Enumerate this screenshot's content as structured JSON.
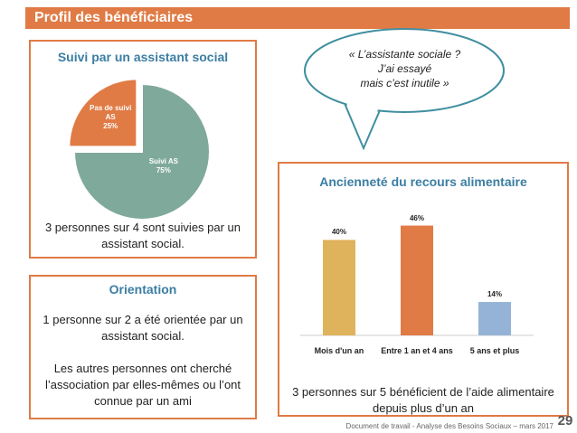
{
  "header": {
    "title": "Profil des bénéficiaires"
  },
  "chart_data": [
    {
      "type": "pie",
      "title": "Suivi par un assistant social",
      "categories": [
        "Suivi AS",
        "Pas de suivi AS"
      ],
      "values": [
        75,
        25
      ],
      "value_labels": [
        "75%",
        "25%"
      ],
      "colors": [
        "#7fa99b",
        "#e07b45"
      ]
    },
    {
      "type": "bar",
      "title": "Ancienneté du recours alimentaire",
      "categories": [
        "Mois d'un an",
        "Entre 1 an et 4 ans",
        "5 ans et plus"
      ],
      "values": [
        40,
        46,
        14
      ],
      "value_labels": [
        "40%",
        "46%",
        "14%"
      ],
      "colors": [
        "#dfb25c",
        "#e07b45",
        "#95b3d7"
      ],
      "ylim": [
        0,
        50
      ]
    }
  ],
  "panels": {
    "suivi_text": "3 personnes sur 4 sont suivies par un assistant social.",
    "orientation": {
      "title": "Orientation",
      "paragraphs": [
        "1 personne sur 2 a été orientée par un assistant social.",
        "Les autres personnes ont cherché l’association par elles-mêmes ou l’ont connue par un ami"
      ]
    },
    "quote": [
      "« L’assistante sociale ?",
      "J’ai essayé",
      "mais c’est inutile »"
    ],
    "anciennete_text": "3 personnes sur 5 bénéficient de l’aide alimentaire depuis plus d’un an"
  },
  "footer": {
    "source": "Document de travail - Analyse des Besoins Sociaux – mars 2017",
    "page": 29
  }
}
